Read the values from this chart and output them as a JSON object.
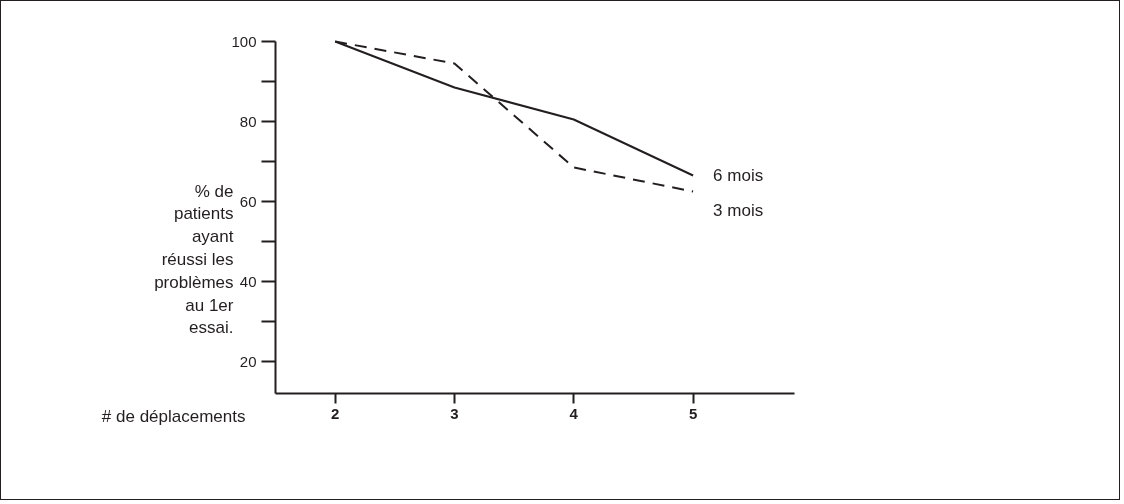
{
  "chart_data": {
    "type": "line",
    "ylabel": "% de patients ayant réussi les problèmes au 1er essai.",
    "xlabel": "# de déplacements",
    "x": [
      2,
      3,
      4,
      5
    ],
    "series": [
      {
        "name": "6 mois",
        "color": "#231f20",
        "line_style": "solid",
        "values": [
          100,
          88.5,
          80.5,
          66.5
        ]
      },
      {
        "name": "3 mois",
        "color": "#231f20",
        "line_style": "dashed",
        "values": [
          100,
          94.5,
          68.5,
          62.5
        ]
      }
    ],
    "xlim": [
      1.5,
      5.85
    ],
    "ylim": [
      12,
      100
    ],
    "xticks": [
      2,
      3,
      4,
      5
    ],
    "yticks": [
      20,
      {
        "value": 30,
        "label": null
      },
      40,
      {
        "value": 50,
        "label": null
      },
      60,
      {
        "value": 70,
        "label": null
      },
      80,
      {
        "value": 90,
        "label": null
      },
      100
    ],
    "grid": false,
    "legend": false
  }
}
